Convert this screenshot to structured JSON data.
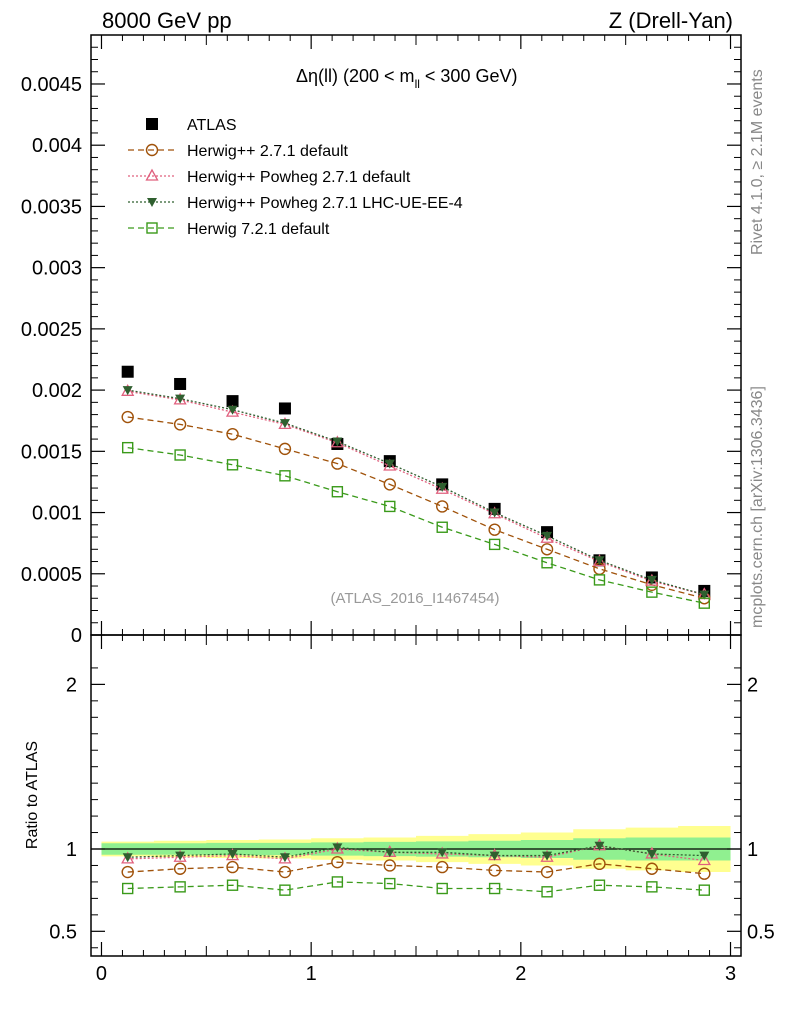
{
  "header": {
    "left": "8000 GeV pp",
    "right": "Z (Drell-Yan)"
  },
  "side_labels": {
    "rivet": "Rivet 4.1.0, ≥ 2.1M events",
    "mcplots": "mcplots.cern.ch [arXiv:1306.3436]"
  },
  "plot_title": {
    "prefix": "Δη(ll) (200 < m",
    "subscript": "ll",
    "suffix": " < 300 GeV)"
  },
  "analysis_id": "(ATLAS_2016_I1467454)",
  "colors": {
    "atlas": "#000000",
    "herwig_271": "#a0520a",
    "powheg_271": "#e0607e",
    "powheg_lhc": "#2f5f2f",
    "herwig_721": "#3a9a1a",
    "band_inner": "#90f090",
    "band_outer": "#ffff90"
  },
  "chart_data": {
    "type": "scatter",
    "title": "Δη(ll) (200 < m_ll < 300 GeV)",
    "x": [
      0.125,
      0.375,
      0.625,
      0.875,
      1.125,
      1.375,
      1.625,
      1.875,
      2.125,
      2.375,
      2.625,
      2.875
    ],
    "x_ticks": [
      0,
      1,
      2,
      3
    ],
    "xlim": [
      -0.05,
      3.05
    ],
    "main": {
      "ylim": [
        0,
        0.0049
      ],
      "y_ticks": [
        0,
        0.0005,
        0.001,
        0.0015,
        0.002,
        0.0025,
        0.003,
        0.0035,
        0.004,
        0.0045
      ],
      "y_tick_labels": [
        "0",
        "0.0005",
        "0.001",
        "0.0015",
        "0.002",
        "0.0025",
        "0.003",
        "0.0035",
        "0.004",
        "0.0045"
      ],
      "series": [
        {
          "key": "atlas",
          "name": "ATLAS",
          "marker": "filled-square",
          "line": "none",
          "values": [
            0.00215,
            0.00205,
            0.00191,
            0.00185,
            0.00156,
            0.00142,
            0.00123,
            0.00103,
            0.00084,
            0.00061,
            0.00047,
            0.00036
          ]
        },
        {
          "key": "herwig_271",
          "name": "Herwig++ 2.7.1 default",
          "marker": "open-circle",
          "line": "dashed",
          "values": [
            0.00178,
            0.00172,
            0.00164,
            0.00152,
            0.0014,
            0.00123,
            0.00105,
            0.00086,
            0.0007,
            0.00054,
            0.00041,
            0.0003
          ]
        },
        {
          "key": "powheg_271",
          "name": "Herwig++ Powheg 2.7.1 default",
          "marker": "open-triangle-up",
          "line": "dotted",
          "values": [
            0.00199,
            0.00192,
            0.00182,
            0.00172,
            0.00157,
            0.00138,
            0.00119,
            0.00099,
            0.00079,
            0.0006,
            0.00044,
            0.00033
          ]
        },
        {
          "key": "powheg_lhc",
          "name": "Herwig++ Powheg 2.7.1 LHC-UE-EE-4",
          "marker": "filled-triangle-down",
          "line": "dotted",
          "values": [
            0.002,
            0.00193,
            0.00184,
            0.00173,
            0.00158,
            0.0014,
            0.00121,
            0.001,
            0.00081,
            0.00061,
            0.00045,
            0.00033
          ]
        },
        {
          "key": "herwig_721",
          "name": "Herwig 7.2.1 default",
          "marker": "open-square",
          "line": "dashed",
          "values": [
            0.00153,
            0.00147,
            0.00139,
            0.0013,
            0.00117,
            0.00105,
            0.00088,
            0.00074,
            0.00059,
            0.00045,
            0.00035,
            0.00026
          ]
        }
      ]
    },
    "ratio": {
      "ylabel": "Ratio to ATLAS",
      "ylim": [
        0.35,
        2.3
      ],
      "y_ticks": [
        0.5,
        1,
        2
      ],
      "y_tick_labels": [
        "0.5",
        "1",
        "2"
      ],
      "band_inner": [
        0.035,
        0.035,
        0.037,
        0.037,
        0.04,
        0.043,
        0.046,
        0.05,
        0.055,
        0.065,
        0.07,
        0.07
      ],
      "band_outer": [
        0.045,
        0.05,
        0.055,
        0.058,
        0.065,
        0.07,
        0.08,
        0.09,
        0.1,
        0.12,
        0.13,
        0.14
      ],
      "series": [
        {
          "key": "herwig_271",
          "values": [
            0.86,
            0.88,
            0.89,
            0.86,
            0.92,
            0.9,
            0.89,
            0.87,
            0.86,
            0.91,
            0.88,
            0.85
          ]
        },
        {
          "key": "powheg_271",
          "values": [
            0.94,
            0.95,
            0.96,
            0.94,
            1.0,
            0.98,
            0.97,
            0.96,
            0.95,
            1.02,
            0.97,
            0.93
          ]
        },
        {
          "key": "powheg_lhc",
          "values": [
            0.95,
            0.96,
            0.97,
            0.95,
            1.01,
            0.98,
            0.98,
            0.96,
            0.96,
            1.02,
            0.97,
            0.96
          ]
        },
        {
          "key": "herwig_721",
          "values": [
            0.76,
            0.77,
            0.78,
            0.75,
            0.8,
            0.79,
            0.76,
            0.76,
            0.74,
            0.78,
            0.77,
            0.75
          ]
        }
      ]
    }
  }
}
